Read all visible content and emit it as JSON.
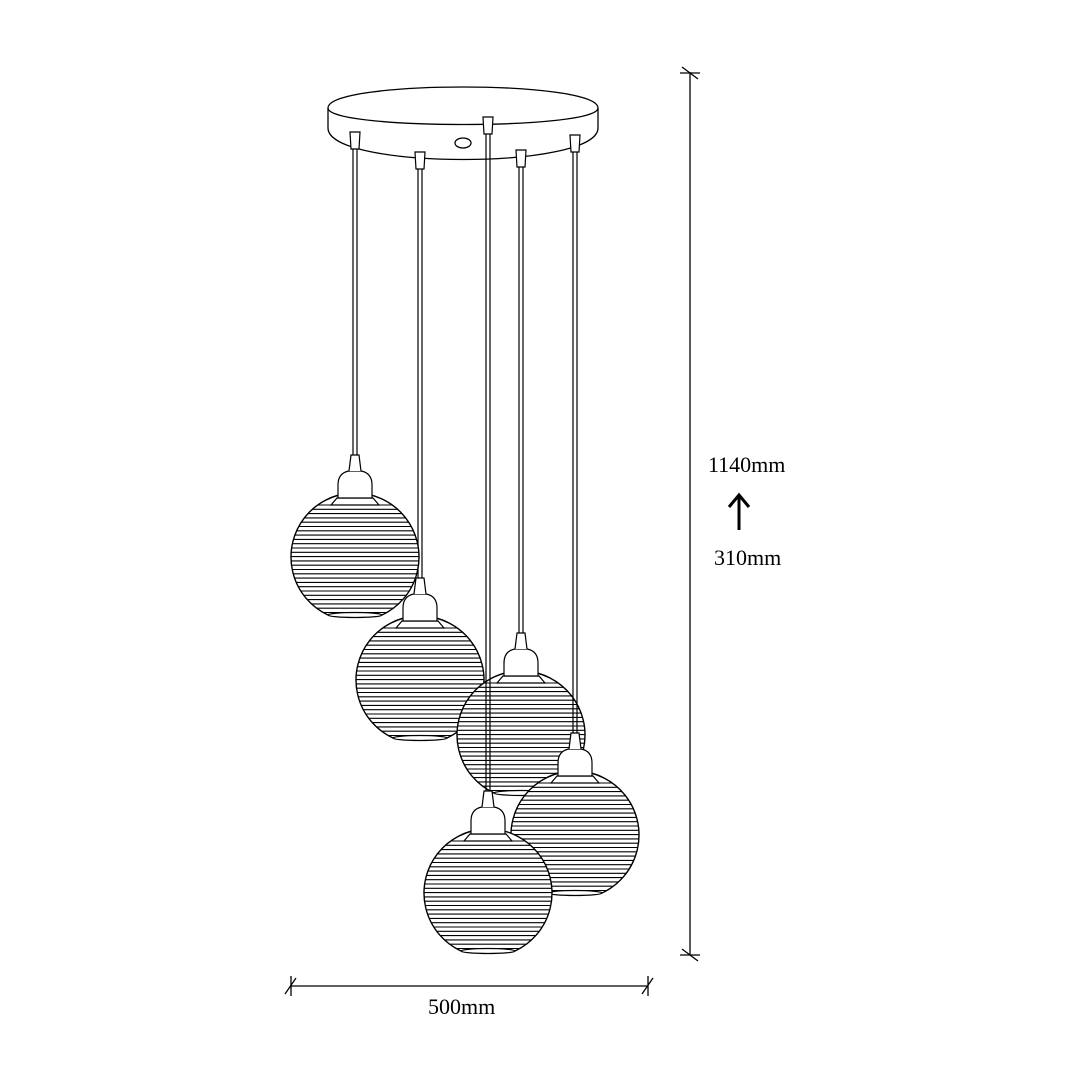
{
  "dimensions": {
    "width_label": "500mm",
    "height_max_label": "1140mm",
    "height_min_label": "310mm",
    "adjustable_arrow_icon": "arrow-up-icon"
  },
  "product": {
    "lamp_count": 5,
    "line_color": "#000000",
    "background_color": "#ffffff"
  }
}
